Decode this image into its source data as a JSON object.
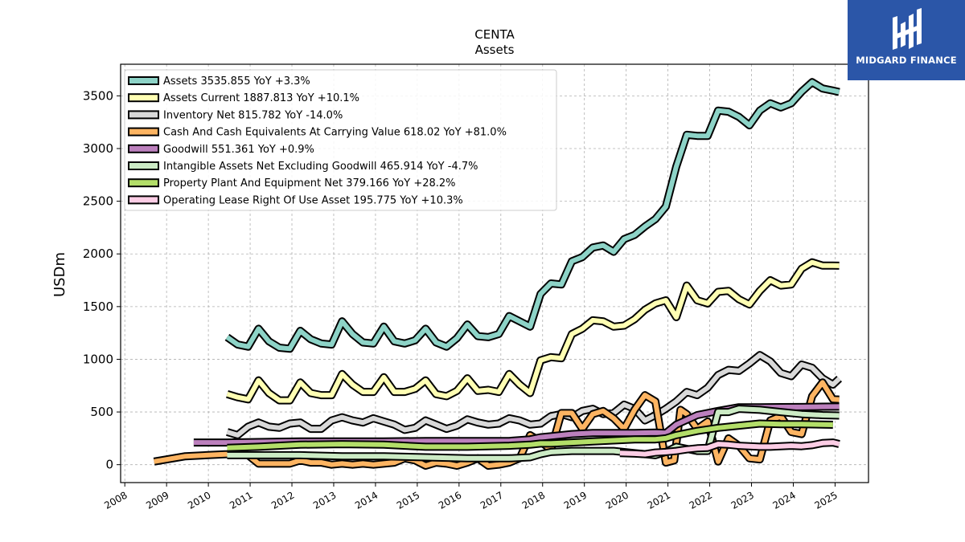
{
  "logo": {
    "text": "MIDGARD FINANCE",
    "color": "#2b56a8"
  },
  "chart_data": {
    "type": "line",
    "title": "CENTA",
    "subtitle": "Assets",
    "ylabel": "USDm",
    "xlabel": "",
    "xlim": [
      2007.9,
      2025.8
    ],
    "ylim": [
      -170,
      3800
    ],
    "yticks": [
      0,
      500,
      1000,
      1500,
      2000,
      2500,
      3000,
      3500
    ],
    "xticks": [
      2008,
      2009,
      2010,
      2011,
      2012,
      2013,
      2014,
      2015,
      2016,
      2017,
      2018,
      2019,
      2020,
      2021,
      2022,
      2023,
      2024,
      2025
    ],
    "grid": true,
    "legend_position": "upper left",
    "series": [
      {
        "name": "Assets  3535.855 YoY +3.3%",
        "color": "#8dd3c7",
        "x": [
          2010.45,
          2010.7,
          2010.95,
          2011.2,
          2011.45,
          2011.7,
          2011.95,
          2012.2,
          2012.45,
          2012.7,
          2012.95,
          2013.2,
          2013.45,
          2013.7,
          2013.95,
          2014.2,
          2014.45,
          2014.7,
          2014.95,
          2015.2,
          2015.45,
          2015.7,
          2015.95,
          2016.2,
          2016.45,
          2016.7,
          2016.95,
          2017.2,
          2017.45,
          2017.7,
          2017.95,
          2018.2,
          2018.45,
          2018.7,
          2018.95,
          2019.2,
          2019.45,
          2019.7,
          2019.95,
          2020.2,
          2020.45,
          2020.7,
          2020.95,
          2021.2,
          2021.45,
          2021.7,
          2021.95,
          2022.2,
          2022.45,
          2022.7,
          2022.95,
          2023.2,
          2023.45,
          2023.7,
          2023.95,
          2024.2,
          2024.45,
          2024.7,
          2024.95,
          2025.1
        ],
        "y": [
          1210,
          1140,
          1120,
          1290,
          1170,
          1110,
          1100,
          1270,
          1190,
          1150,
          1140,
          1360,
          1240,
          1160,
          1150,
          1310,
          1170,
          1150,
          1180,
          1290,
          1160,
          1120,
          1200,
          1330,
          1220,
          1210,
          1240,
          1410,
          1360,
          1310,
          1620,
          1720,
          1710,
          1930,
          1970,
          2060,
          2080,
          2020,
          2140,
          2180,
          2260,
          2330,
          2450,
          2830,
          3130,
          3120,
          3120,
          3360,
          3350,
          3300,
          3220,
          3360,
          3430,
          3390,
          3430,
          3540,
          3630,
          3570,
          3550,
          3536
        ]
      },
      {
        "name": "Assets Current  1887.813 YoY +10.1%",
        "color": "#ffffb3",
        "x": [
          2010.45,
          2010.7,
          2010.95,
          2011.2,
          2011.45,
          2011.7,
          2011.95,
          2012.2,
          2012.45,
          2012.7,
          2012.95,
          2013.2,
          2013.45,
          2013.7,
          2013.95,
          2014.2,
          2014.45,
          2014.7,
          2014.95,
          2015.2,
          2015.45,
          2015.7,
          2015.95,
          2016.2,
          2016.45,
          2016.7,
          2016.95,
          2017.2,
          2017.45,
          2017.7,
          2017.95,
          2018.2,
          2018.45,
          2018.7,
          2018.95,
          2019.2,
          2019.45,
          2019.7,
          2019.95,
          2020.2,
          2020.45,
          2020.7,
          2020.95,
          2021.2,
          2021.45,
          2021.7,
          2021.95,
          2022.2,
          2022.45,
          2022.7,
          2022.95,
          2023.2,
          2023.45,
          2023.7,
          2023.95,
          2024.2,
          2024.45,
          2024.7,
          2024.95,
          2025.1
        ],
        "y": [
          670,
          640,
          620,
          800,
          680,
          610,
          610,
          780,
          680,
          660,
          660,
          860,
          760,
          690,
          690,
          830,
          690,
          690,
          720,
          800,
          670,
          650,
          700,
          820,
          700,
          710,
          690,
          860,
          760,
          680,
          990,
          1020,
          1010,
          1240,
          1290,
          1370,
          1360,
          1310,
          1320,
          1380,
          1470,
          1530,
          1560,
          1400,
          1700,
          1560,
          1530,
          1640,
          1650,
          1570,
          1520,
          1650,
          1750,
          1700,
          1710,
          1860,
          1920,
          1890,
          1890,
          1888
        ]
      },
      {
        "name": "Inventory Net  815.782 YoY -14.0%",
        "color": "#d9d9d9",
        "x": [
          2010.45,
          2010.7,
          2010.95,
          2011.2,
          2011.45,
          2011.7,
          2011.95,
          2012.2,
          2012.45,
          2012.7,
          2012.95,
          2013.2,
          2013.45,
          2013.7,
          2013.95,
          2014.2,
          2014.45,
          2014.7,
          2014.95,
          2015.2,
          2015.45,
          2015.7,
          2015.95,
          2016.2,
          2016.45,
          2016.7,
          2016.95,
          2017.2,
          2017.45,
          2017.7,
          2017.95,
          2018.2,
          2018.45,
          2018.7,
          2018.95,
          2019.2,
          2019.45,
          2019.7,
          2019.95,
          2020.2,
          2020.45,
          2020.7,
          2020.95,
          2021.2,
          2021.45,
          2021.7,
          2021.95,
          2022.2,
          2022.45,
          2022.7,
          2022.95,
          2023.2,
          2023.45,
          2023.7,
          2023.95,
          2024.2,
          2024.45,
          2024.7,
          2024.95,
          2025.1
        ],
        "y": [
          310,
          280,
          360,
          400,
          360,
          350,
          390,
          400,
          340,
          340,
          420,
          450,
          420,
          400,
          440,
          410,
          380,
          330,
          350,
          420,
          380,
          340,
          370,
          430,
          400,
          380,
          390,
          440,
          420,
          380,
          390,
          460,
          480,
          450,
          510,
          530,
          480,
          490,
          570,
          530,
          420,
          470,
          530,
          600,
          690,
          660,
          730,
          850,
          900,
          890,
          960,
          1040,
          980,
          870,
          840,
          950,
          920,
          820,
          760,
          816
        ]
      },
      {
        "name": "Cash And Cash Equivalents At Carrying Value  618.02 YoY +81.0%",
        "color": "#fdb462",
        "x": [
          2008.7,
          2009.45,
          2009.95,
          2010.45,
          2010.7,
          2010.95,
          2011.2,
          2011.45,
          2011.7,
          2011.95,
          2012.2,
          2012.45,
          2012.7,
          2012.95,
          2013.2,
          2013.45,
          2013.7,
          2013.95,
          2014.2,
          2014.45,
          2014.7,
          2014.95,
          2015.2,
          2015.45,
          2015.7,
          2015.95,
          2016.2,
          2016.45,
          2016.7,
          2016.95,
          2017.2,
          2017.45,
          2017.7,
          2017.95,
          2018.2,
          2018.45,
          2018.7,
          2018.95,
          2019.2,
          2019.45,
          2019.7,
          2019.95,
          2020.2,
          2020.45,
          2020.7,
          2020.95,
          2021.15,
          2021.3,
          2021.45,
          2021.7,
          2021.95,
          2022.2,
          2022.45,
          2022.7,
          2022.95,
          2023.2,
          2023.45,
          2023.7,
          2023.95,
          2024.2,
          2024.45,
          2024.7,
          2024.95,
          2025.1
        ],
        "y": [
          30,
          80,
          90,
          100,
          110,
          90,
          10,
          10,
          10,
          10,
          40,
          20,
          20,
          0,
          10,
          0,
          10,
          0,
          10,
          20,
          60,
          40,
          -10,
          20,
          10,
          -10,
          20,
          60,
          -10,
          0,
          20,
          60,
          280,
          220,
          140,
          490,
          490,
          340,
          480,
          510,
          440,
          340,
          520,
          660,
          600,
          20,
          40,
          520,
          480,
          340,
          410,
          30,
          250,
          180,
          60,
          50,
          420,
          460,
          310,
          290,
          650,
          780,
          620,
          618
        ]
      },
      {
        "name": "Goodwill  551.361 YoY +0.9%",
        "color": "#bc80bd",
        "x": [
          2009.65,
          2010.45,
          2011.2,
          2012.2,
          2013.2,
          2014.2,
          2015.2,
          2016.2,
          2017.2,
          2017.7,
          2017.95,
          2018.2,
          2018.7,
          2019.2,
          2019.7,
          2020.2,
          2020.7,
          2020.95,
          2021.2,
          2021.7,
          2022.2,
          2022.7,
          2023.2,
          2023.7,
          2024.2,
          2024.7,
          2025.1
        ],
        "y": [
          210,
          210,
          215,
          220,
          220,
          220,
          225,
          225,
          225,
          240,
          260,
          270,
          290,
          300,
          300,
          300,
          305,
          300,
          380,
          470,
          510,
          545,
          545,
          546,
          547,
          550,
          551
        ]
      },
      {
        "name": "Intangible Assets Net Excluding Goodwill  465.914 YoY -4.7%",
        "color": "#ccebc5",
        "x": [
          2010.45,
          2011.2,
          2012.2,
          2013.2,
          2014.2,
          2015.2,
          2016.2,
          2017.2,
          2017.7,
          2017.95,
          2018.2,
          2018.7,
          2019.2,
          2019.7,
          2020.2,
          2020.7,
          2020.95,
          2021.2,
          2021.7,
          2021.95,
          2022.2,
          2022.45,
          2022.7,
          2023.2,
          2023.7,
          2024.2,
          2024.7,
          2025.1
        ],
        "y": [
          90,
          90,
          90,
          80,
          80,
          70,
          60,
          60,
          70,
          100,
          120,
          130,
          130,
          130,
          110,
          90,
          120,
          170,
          130,
          130,
          500,
          500,
          530,
          520,
          500,
          480,
          470,
          466
        ]
      },
      {
        "name": "Property Plant And Equipment Net  379.166 YoY +28.2%",
        "color": "#b3de69",
        "x": [
          2010.45,
          2011.2,
          2012.2,
          2013.2,
          2014.2,
          2015.2,
          2016.2,
          2017.2,
          2017.7,
          2017.95,
          2018.2,
          2018.7,
          2019.2,
          2019.7,
          2020.2,
          2020.7,
          2020.95,
          2021.2,
          2021.7,
          2022.2,
          2022.7,
          2023.2,
          2023.7,
          2024.2,
          2024.7,
          2024.95
        ],
        "y": [
          160,
          170,
          190,
          195,
          190,
          170,
          170,
          180,
          190,
          200,
          200,
          210,
          220,
          230,
          240,
          240,
          250,
          280,
          320,
          350,
          370,
          390,
          385,
          385,
          380,
          379
        ]
      },
      {
        "name": "Operating Lease Right Of Use Asset  195.775 YoY +10.3%",
        "color": "#fccde5",
        "x": [
          2019.85,
          2020.2,
          2020.45,
          2020.7,
          2020.95,
          2021.2,
          2021.45,
          2021.7,
          2021.95,
          2022.2,
          2022.45,
          2022.7,
          2022.95,
          2023.2,
          2023.45,
          2023.7,
          2023.95,
          2024.2,
          2024.45,
          2024.7,
          2024.95,
          2025.1
        ],
        "y": [
          110,
          105,
          100,
          115,
          120,
          130,
          145,
          155,
          160,
          195,
          190,
          180,
          175,
          170,
          170,
          175,
          180,
          175,
          185,
          205,
          210,
          196
        ]
      }
    ]
  }
}
